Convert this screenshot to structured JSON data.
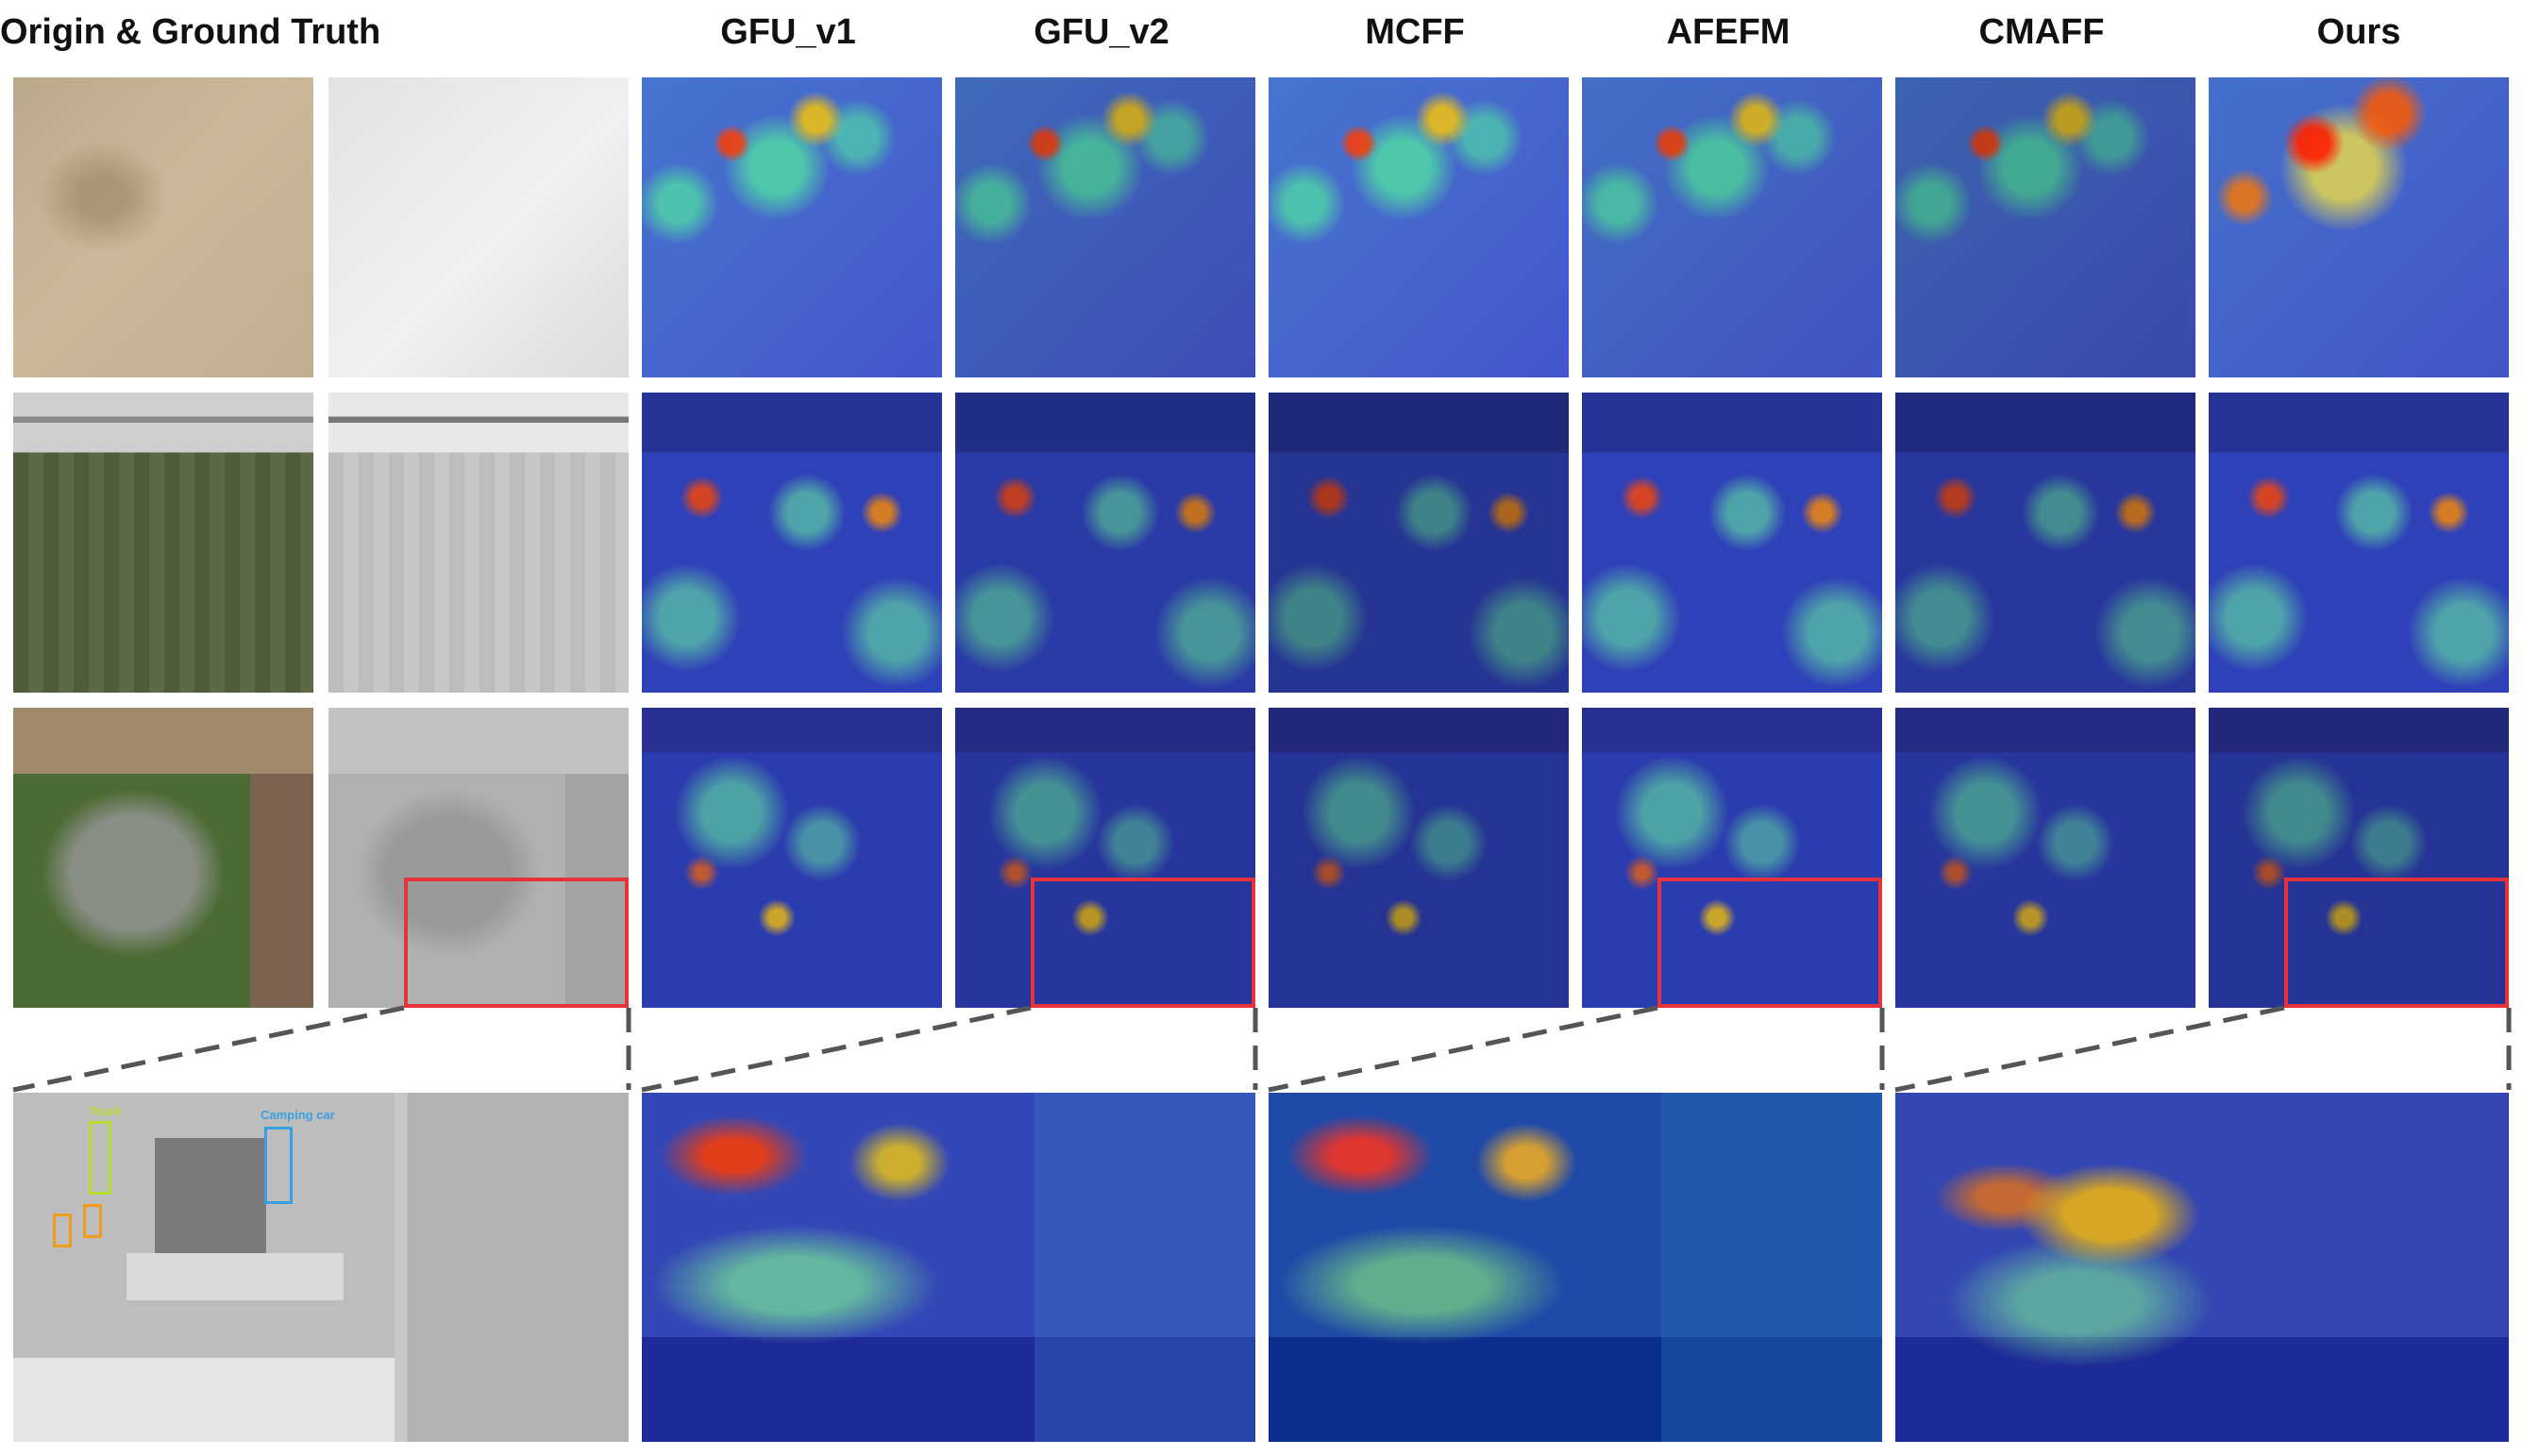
{
  "headers": {
    "origin_gt": "Origin & Ground Truth",
    "gfu_v1": "GFU_v1",
    "gfu_v2": "GFU_v2",
    "mcff": "MCFF",
    "afefm": "AFEFM",
    "cmaff": "CMAFF",
    "ours": "Ours"
  },
  "zoom_labels": {
    "truck": "Truck",
    "camping": "Camping car"
  },
  "colors": {
    "zoom_box": "#e5323b",
    "dashed_connector": "#555555",
    "truck_box": "#b6e02e",
    "car_box": "#f29a1a",
    "camping_box": "#3aa0e0",
    "van_box": "#e03ca8"
  }
}
